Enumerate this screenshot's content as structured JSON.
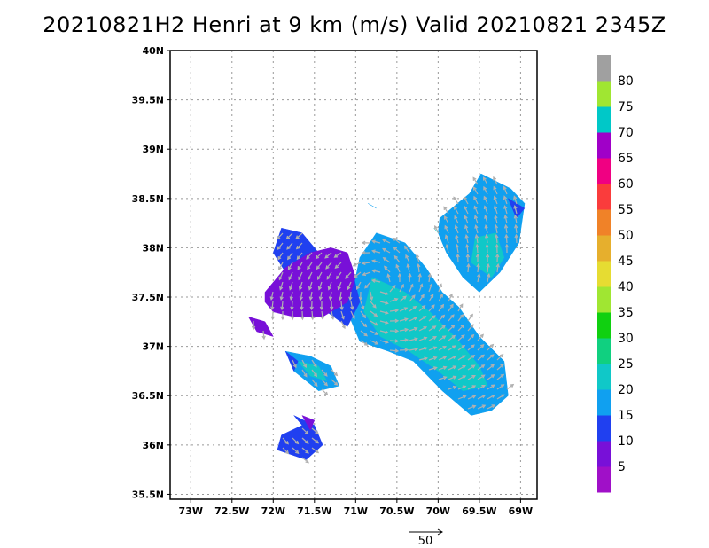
{
  "chart_data": {
    "type": "heatmap",
    "title": "20210821H2 Henri at 9 km (m/s) Valid 20210821  2345Z",
    "x_axis": {
      "range": [
        -73.25,
        -68.8
      ],
      "ticks": [
        -73,
        -72.5,
        -72,
        -71.5,
        -71,
        -70.5,
        -70,
        -69.5,
        -69
      ],
      "tick_labels": [
        "73W",
        "72.5W",
        "72W",
        "71.5W",
        "71W",
        "70.5W",
        "70W",
        "69.5W",
        "69W"
      ]
    },
    "y_axis": {
      "range": [
        35.45,
        40.0
      ],
      "ticks": [
        35.5,
        36,
        36.5,
        37,
        37.5,
        38,
        38.5,
        39,
        39.5,
        40
      ],
      "tick_labels": [
        "35.5N",
        "36N",
        "36.5N",
        "37N",
        "37.5N",
        "38N",
        "38.5N",
        "39N",
        "39.5N",
        "40N"
      ]
    },
    "grid": true,
    "colorbar": {
      "labels": [
        "5",
        "10",
        "15",
        "20",
        "25",
        "30",
        "35",
        "40",
        "45",
        "50",
        "55",
        "60",
        "65",
        "70",
        "75",
        "80"
      ],
      "bins": [
        {
          "min": 0,
          "max": 5,
          "color": "#a010c8"
        },
        {
          "min": 5,
          "max": 10,
          "color": "#7810d8"
        },
        {
          "min": 10,
          "max": 15,
          "color": "#2040f0"
        },
        {
          "min": 15,
          "max": 20,
          "color": "#10a0f0"
        },
        {
          "min": 20,
          "max": 25,
          "color": "#10c8c8"
        },
        {
          "min": 25,
          "max": 30,
          "color": "#10d080"
        },
        {
          "min": 30,
          "max": 35,
          "color": "#10d010"
        },
        {
          "min": 35,
          "max": 40,
          "color": "#a0e632"
        },
        {
          "min": 40,
          "max": 45,
          "color": "#e6dc32"
        },
        {
          "min": 45,
          "max": 50,
          "color": "#e6af2d"
        },
        {
          "min": 50,
          "max": 55,
          "color": "#f08228"
        },
        {
          "min": 55,
          "max": 60,
          "color": "#fa3c3c"
        },
        {
          "min": 60,
          "max": 65,
          "color": "#f00082"
        },
        {
          "min": 65,
          "max": 70,
          "color": "#a000c8"
        },
        {
          "min": 70,
          "max": 75,
          "color": "#00c8c8"
        },
        {
          "min": 75,
          "max": 80,
          "color": "#a0e632"
        },
        {
          "min": 80,
          "max": 85,
          "color": "#a0a0a0"
        }
      ]
    },
    "wind_regions": [
      {
        "speed_bin": "15-20",
        "lon": [
          -69.98,
          -69.62,
          -69.48,
          -69.12,
          -68.95,
          -69.02,
          -69.25,
          -69.5,
          -69.7,
          -69.9,
          -70.0
        ],
        "lat": [
          38.3,
          38.55,
          38.75,
          38.6,
          38.45,
          38.05,
          37.75,
          37.55,
          37.7,
          37.95,
          38.15
        ]
      },
      {
        "speed_bin": "20-25",
        "lon": [
          -69.55,
          -69.3,
          -69.2,
          -69.35,
          -69.6
        ],
        "lat": [
          38.1,
          38.15,
          37.9,
          37.7,
          37.85
        ]
      },
      {
        "speed_bin": "10-15",
        "lon": [
          -69.15,
          -68.95,
          -69.05
        ],
        "lat": [
          38.5,
          38.4,
          38.3
        ]
      },
      {
        "speed_bin": "15-20",
        "lon": [
          -70.75,
          -70.4,
          -70.15,
          -69.95,
          -69.75,
          -69.5,
          -69.2,
          -69.15,
          -69.35,
          -69.6,
          -69.95,
          -70.3,
          -70.6,
          -70.95,
          -71.1,
          -71.0,
          -70.95
        ],
        "lat": [
          38.15,
          38.05,
          37.8,
          37.55,
          37.4,
          37.1,
          36.85,
          36.5,
          36.35,
          36.3,
          36.55,
          36.85,
          36.95,
          37.05,
          37.35,
          37.7,
          37.9
        ]
      },
      {
        "speed_bin": "20-25",
        "lon": [
          -70.8,
          -70.4,
          -70.1,
          -69.8,
          -69.5,
          -69.4,
          -69.7,
          -70.0,
          -70.35,
          -70.7,
          -70.9
        ],
        "lat": [
          37.7,
          37.55,
          37.35,
          37.1,
          36.8,
          36.6,
          36.55,
          36.75,
          36.95,
          37.1,
          37.35
        ]
      },
      {
        "speed_bin": "10-15",
        "lon": [
          -71.25,
          -71.05,
          -70.95,
          -71.1,
          -71.35
        ],
        "lat": [
          37.75,
          37.8,
          37.45,
          37.2,
          37.35
        ]
      },
      {
        "speed_bin": "10-15",
        "lon": [
          -71.9,
          -71.65,
          -71.45,
          -71.3,
          -71.7,
          -72.0
        ],
        "lat": [
          38.2,
          38.15,
          37.95,
          37.7,
          37.55,
          37.95
        ]
      },
      {
        "speed_bin": "5-10",
        "lon": [
          -72.1,
          -71.85,
          -71.55,
          -71.3,
          -71.1,
          -71.0,
          -71.1,
          -71.4,
          -71.75,
          -72.0,
          -72.1
        ],
        "lat": [
          37.55,
          37.8,
          37.95,
          38.0,
          37.95,
          37.7,
          37.45,
          37.3,
          37.3,
          37.35,
          37.45
        ]
      },
      {
        "speed_bin": "5-10",
        "lon": [
          -72.3,
          -72.1,
          -72.0,
          -72.2
        ],
        "lat": [
          37.3,
          37.25,
          37.1,
          37.15
        ]
      },
      {
        "speed_bin": "15-20",
        "lon": [
          -71.85,
          -71.55,
          -71.3,
          -71.2,
          -71.45,
          -71.75
        ],
        "lat": [
          36.95,
          36.9,
          36.8,
          36.6,
          36.55,
          36.75
        ]
      },
      {
        "speed_bin": "20-25",
        "lon": [
          -71.7,
          -71.45,
          -71.35,
          -71.55
        ],
        "lat": [
          36.85,
          36.8,
          36.65,
          36.7
        ]
      },
      {
        "speed_bin": "10-15",
        "lon": [
          -71.85,
          -71.7,
          -71.75
        ],
        "lat": [
          36.95,
          36.85,
          36.75
        ]
      },
      {
        "speed_bin": "10-15",
        "lon": [
          -71.75,
          -71.5,
          -71.4,
          -71.6,
          -71.95,
          -71.9,
          -71.65
        ],
        "lat": [
          36.3,
          36.2,
          36.0,
          35.85,
          35.95,
          36.1,
          36.2
        ]
      },
      {
        "speed_bin": "5-10",
        "lon": [
          -71.65,
          -71.5,
          -71.55
        ],
        "lat": [
          36.3,
          36.25,
          36.15
        ]
      },
      {
        "speed_bin": "20-25",
        "lon": [
          -70.05,
          -70.0
        ],
        "lat": [
          38.2,
          38.15
        ]
      },
      {
        "speed_bin": "15-20",
        "lon": [
          -70.85,
          -70.75
        ],
        "lat": [
          38.45,
          38.4
        ]
      }
    ],
    "wind_vector_reference": {
      "label": "50",
      "speed": 50
    }
  }
}
